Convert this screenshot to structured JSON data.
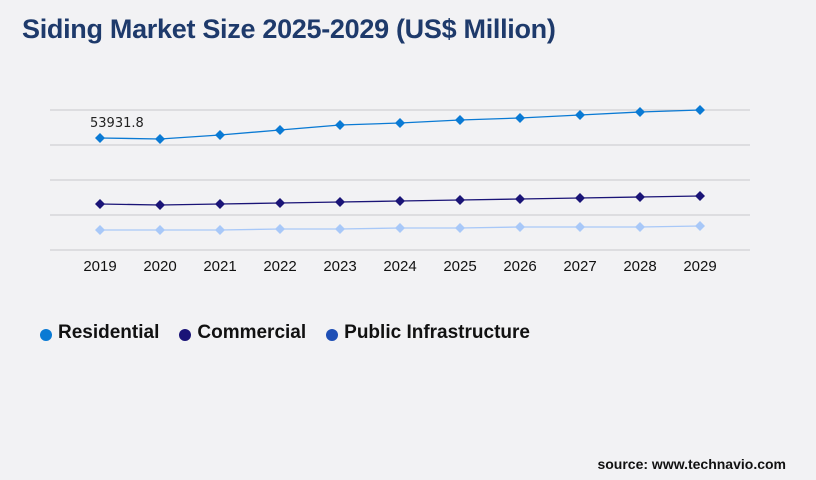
{
  "title": "Siding Market Size 2025-2029 (US$ Million)",
  "source": "source: www.technavio.com",
  "chart_data": {
    "type": "line",
    "title": "Siding Market Size 2025-2029 (US$ Million)",
    "categories": [
      "2019",
      "2020",
      "2021",
      "2022",
      "2023",
      "2024",
      "2025",
      "2026",
      "2027",
      "2028",
      "2029"
    ],
    "ylim": [
      0,
      67410
    ],
    "grid": true,
    "legend_position": "bottom-left",
    "annotations": [
      {
        "series": "Residential",
        "category": "2019",
        "label": "53931.8"
      }
    ],
    "series": [
      {
        "name": "Residential",
        "color": "#0a7ad4",
        "values": [
          53932,
          53450,
          55370,
          57780,
          60190,
          61150,
          62600,
          63560,
          65000,
          66450,
          67410
        ]
      },
      {
        "name": "Commercial",
        "color": "#1a1477",
        "values": [
          22150,
          21670,
          22150,
          22630,
          23110,
          23600,
          24080,
          24560,
          25040,
          25520,
          26000
        ]
      },
      {
        "name": "Public Infrastructure",
        "color": "#a8c8f8",
        "legend_color": "#1f4fb5",
        "values": [
          9630,
          9630,
          9630,
          10110,
          10110,
          10590,
          10590,
          11070,
          11070,
          11070,
          11560
        ]
      }
    ]
  }
}
